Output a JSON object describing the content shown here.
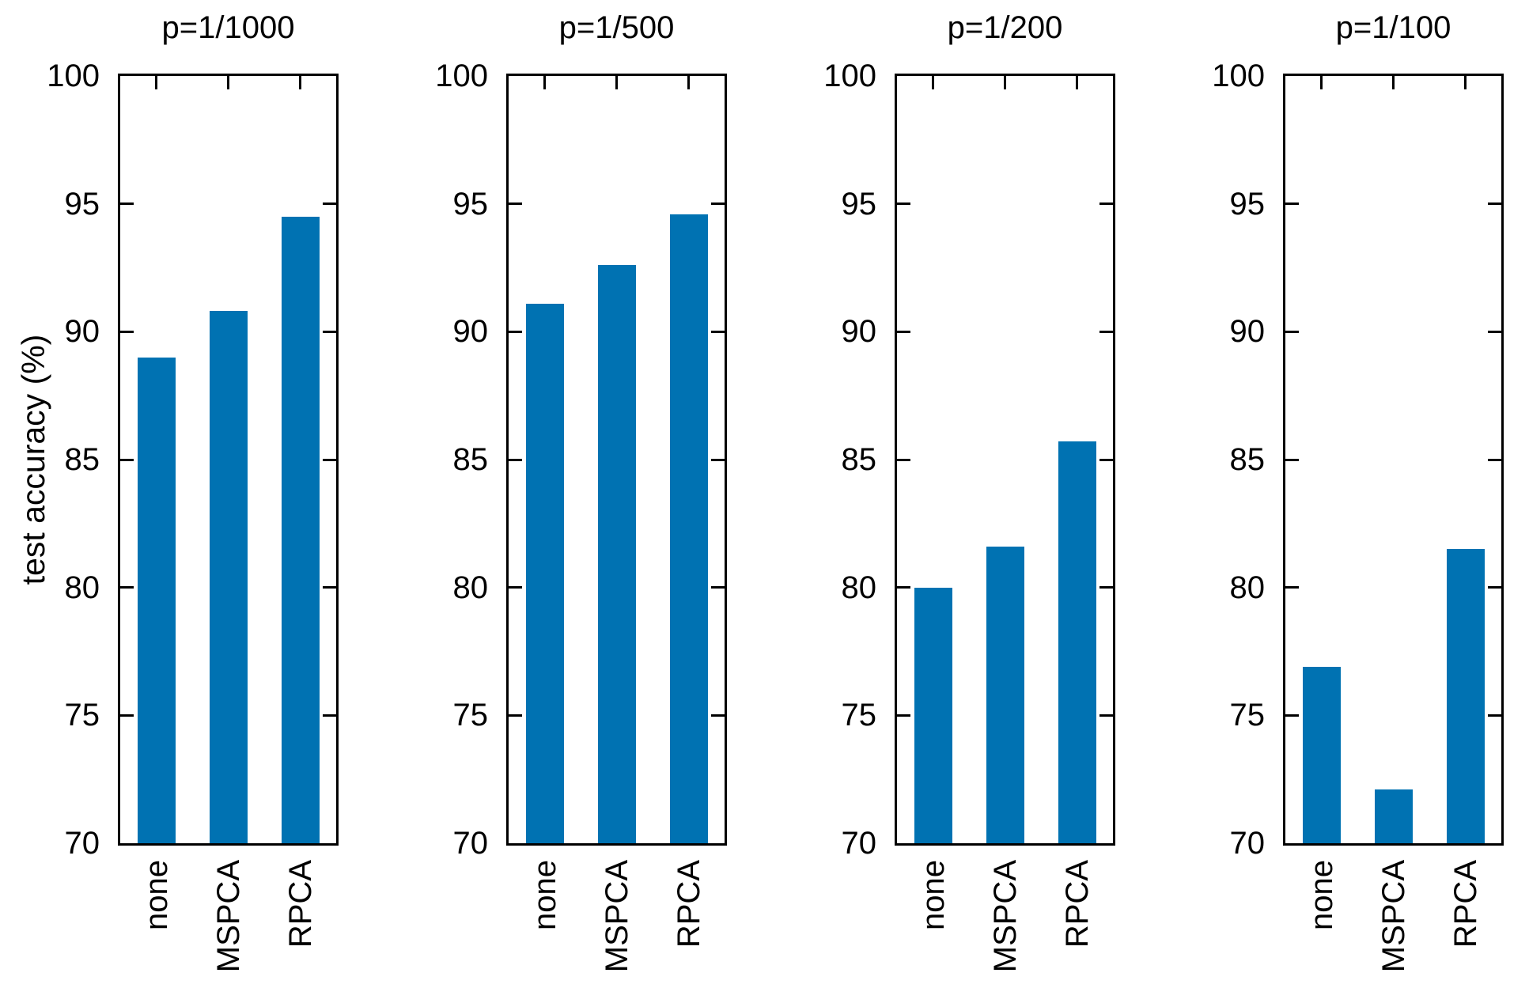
{
  "figure": {
    "y_axis_title": "test accuracy (%)",
    "bar_color": "#0072B2",
    "axis_color": "#000000",
    "background_color": "#ffffff"
  },
  "chart_data": [
    {
      "type": "bar",
      "title": "p=1/1000",
      "categories": [
        "none",
        "MSPCA",
        "RPCA"
      ],
      "values": [
        89.0,
        90.8,
        94.5
      ],
      "xlabel": "",
      "ylabel": "test accuracy (%)",
      "ylim": [
        70,
        100
      ],
      "yticks": [
        70,
        75,
        80,
        85,
        90,
        95,
        100
      ],
      "grid": false,
      "legend_position": "none"
    },
    {
      "type": "bar",
      "title": "p=1/500",
      "categories": [
        "none",
        "MSPCA",
        "RPCA"
      ],
      "values": [
        91.1,
        92.6,
        94.6
      ],
      "xlabel": "",
      "ylabel": "",
      "ylim": [
        70,
        100
      ],
      "yticks": [
        70,
        75,
        80,
        85,
        90,
        95,
        100
      ],
      "grid": false,
      "legend_position": "none"
    },
    {
      "type": "bar",
      "title": "p=1/200",
      "categories": [
        "none",
        "MSPCA",
        "RPCA"
      ],
      "values": [
        80.0,
        81.6,
        85.7
      ],
      "xlabel": "",
      "ylabel": "",
      "ylim": [
        70,
        100
      ],
      "yticks": [
        70,
        75,
        80,
        85,
        90,
        95,
        100
      ],
      "grid": false,
      "legend_position": "none"
    },
    {
      "type": "bar",
      "title": "p=1/100",
      "categories": [
        "none",
        "MSPCA",
        "RPCA"
      ],
      "values": [
        76.9,
        72.1,
        81.5
      ],
      "xlabel": "",
      "ylabel": "",
      "ylim": [
        70,
        100
      ],
      "yticks": [
        70,
        75,
        80,
        85,
        90,
        95,
        100
      ],
      "grid": false,
      "legend_position": "none"
    }
  ]
}
